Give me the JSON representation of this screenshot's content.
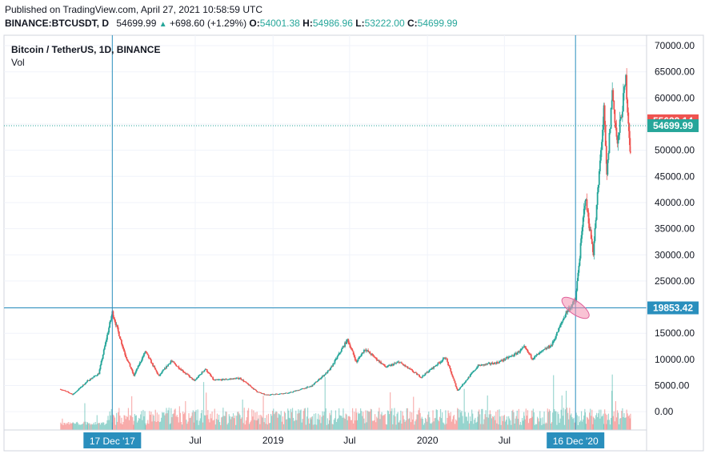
{
  "header": {
    "published": "Published on TradingView.com, April 27, 2021 10:58:59 UTC",
    "symbol": "BINANCE:BTCUSDT, D",
    "last": "54699.99",
    "change": "+698.60 (+1.29%)",
    "o_label": "O:",
    "o_value": "54001.38",
    "h_label": "H:",
    "h_value": "54986.96",
    "l_label": "L:",
    "l_value": "53222.00",
    "c_label": "C:",
    "c_value": "54699.99"
  },
  "legend": {
    "title": "Bitcoin / TetherUS, 1D, BINANCE",
    "vol": "Vol"
  },
  "colors": {
    "up": "#26a69a",
    "down": "#ef5350",
    "crosshair": "#2a8fbd",
    "highlight": "#f48fb1"
  },
  "chart_data": {
    "type": "candlestick",
    "y_ticks": [
      "70000.00",
      "65000.00",
      "60000.00",
      "55000.00",
      "50000.00",
      "45000.00",
      "40000.00",
      "35000.00",
      "30000.00",
      "25000.00",
      "20000.00",
      "15000.00",
      "10000.00",
      "5000.00",
      "0.00"
    ],
    "x_ticks": [
      "Jul",
      "2019",
      "Jul",
      "2020",
      "Jul"
    ],
    "ylim": [
      -3500,
      72000
    ],
    "price_labels": [
      {
        "text": "55633.14",
        "value": 55633.14,
        "color": "#ef5350"
      },
      {
        "text": "54699.99",
        "value": 54699.99,
        "color": "#26a69a"
      },
      {
        "text": "19853.42",
        "value": 19853.42,
        "color": "#2a8fbd"
      }
    ],
    "time_labels": [
      {
        "text": "17 Dec '17",
        "date": "2017-12-17"
      },
      {
        "text": "16 Dec '20",
        "date": "2020-12-16"
      }
    ],
    "crosshair_price": 19853.42,
    "series": [
      {
        "date": "2017-08-17",
        "close": 4300
      },
      {
        "date": "2017-09-15",
        "close": 3300
      },
      {
        "date": "2017-10-20",
        "close": 5900
      },
      {
        "date": "2017-11-15",
        "close": 7300
      },
      {
        "date": "2017-12-17",
        "close": 19000
      },
      {
        "date": "2018-01-16",
        "close": 11000
      },
      {
        "date": "2018-02-06",
        "close": 6900
      },
      {
        "date": "2018-03-05",
        "close": 11500
      },
      {
        "date": "2018-04-06",
        "close": 6800
      },
      {
        "date": "2018-05-05",
        "close": 9700
      },
      {
        "date": "2018-06-29",
        "close": 5900
      },
      {
        "date": "2018-07-25",
        "close": 8200
      },
      {
        "date": "2018-08-14",
        "close": 6000
      },
      {
        "date": "2018-10-15",
        "close": 6400
      },
      {
        "date": "2018-11-25",
        "close": 3800
      },
      {
        "date": "2018-12-15",
        "close": 3200
      },
      {
        "date": "2019-02-08",
        "close": 3600
      },
      {
        "date": "2019-04-02",
        "close": 4900
      },
      {
        "date": "2019-05-15",
        "close": 8000
      },
      {
        "date": "2019-06-26",
        "close": 13800
      },
      {
        "date": "2019-07-17",
        "close": 9500
      },
      {
        "date": "2019-08-06",
        "close": 12000
      },
      {
        "date": "2019-09-25",
        "close": 8500
      },
      {
        "date": "2019-10-26",
        "close": 9500
      },
      {
        "date": "2019-12-17",
        "close": 6600
      },
      {
        "date": "2020-02-13",
        "close": 10400
      },
      {
        "date": "2020-03-12",
        "close": 4000
      },
      {
        "date": "2020-04-30",
        "close": 8800
      },
      {
        "date": "2020-06-15",
        "close": 9400
      },
      {
        "date": "2020-07-27",
        "close": 11000
      },
      {
        "date": "2020-08-17",
        "close": 12300
      },
      {
        "date": "2020-09-05",
        "close": 10200
      },
      {
        "date": "2020-10-21",
        "close": 12800
      },
      {
        "date": "2020-11-24",
        "close": 19000
      },
      {
        "date": "2020-12-16",
        "close": 21300
      },
      {
        "date": "2021-01-08",
        "close": 41000
      },
      {
        "date": "2021-01-27",
        "close": 30400
      },
      {
        "date": "2021-02-21",
        "close": 57500
      },
      {
        "date": "2021-02-28",
        "close": 45000
      },
      {
        "date": "2021-03-13",
        "close": 61200
      },
      {
        "date": "2021-03-25",
        "close": 51000
      },
      {
        "date": "2021-04-14",
        "close": 63500
      },
      {
        "date": "2021-04-25",
        "close": 49000
      },
      {
        "date": "2021-04-27",
        "close": 54699.99
      }
    ]
  }
}
